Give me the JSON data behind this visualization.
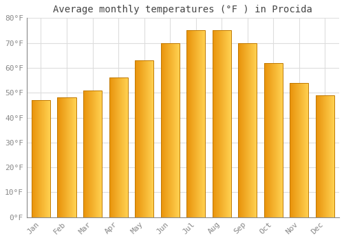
{
  "title": "Average monthly temperatures (°F ) in Procida",
  "months": [
    "Jan",
    "Feb",
    "Mar",
    "Apr",
    "May",
    "Jun",
    "Jul",
    "Aug",
    "Sep",
    "Oct",
    "Nov",
    "Dec"
  ],
  "values": [
    47,
    48,
    51,
    56,
    63,
    70,
    75,
    75,
    70,
    62,
    54,
    49
  ],
  "bar_color_left": "#E8920A",
  "bar_color_right": "#FFD050",
  "bar_edge_color": "#C07800",
  "ylim": [
    0,
    80
  ],
  "yticks": [
    0,
    10,
    20,
    30,
    40,
    50,
    60,
    70,
    80
  ],
  "ytick_labels": [
    "0°F",
    "10°F",
    "20°F",
    "30°F",
    "40°F",
    "50°F",
    "60°F",
    "70°F",
    "80°F"
  ],
  "background_color": "#FFFFFF",
  "grid_color": "#DDDDDD",
  "title_fontsize": 10,
  "tick_fontsize": 8,
  "font_family": "monospace"
}
